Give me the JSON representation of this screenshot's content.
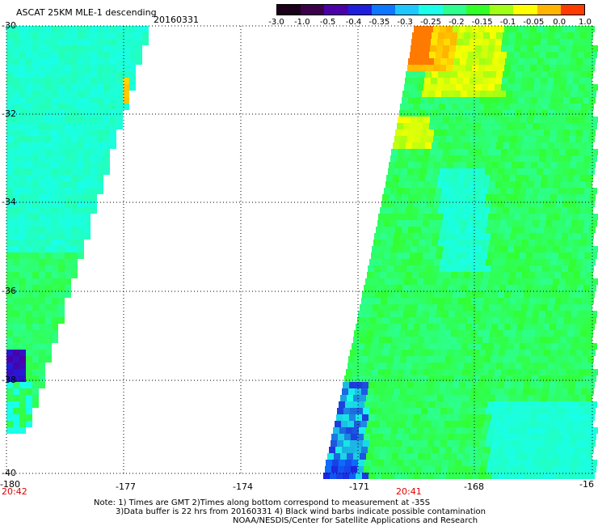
{
  "header": {
    "title": "ASCAT 25KM MLE-1 descending",
    "date": "20160331"
  },
  "colorbar": {
    "labels": [
      "-3.0",
      "-1.0",
      "-0.5",
      "-0.4",
      "-0.35",
      "-0.3",
      "-0.25",
      "-0.2",
      "-0.15",
      "-0.1",
      "-0.05",
      "0.0",
      "1.0"
    ],
    "colors": [
      "#1a0018",
      "#3a004a",
      "#4b00a8",
      "#1e1edc",
      "#0a78ff",
      "#1ec8ff",
      "#19ffe8",
      "#2cff90",
      "#32ff28",
      "#a0ff14",
      "#ffff00",
      "#ffb400",
      "#ff3c00"
    ]
  },
  "axes": {
    "lat_labels": [
      "-30",
      "-32",
      "-34",
      "-36",
      "-38",
      "-40"
    ],
    "lon_labels": [
      "-180",
      "-177",
      "-174",
      "-171",
      "-168",
      "-16"
    ]
  },
  "times": {
    "left": "20:42",
    "right": "20:41"
  },
  "notes": {
    "line1": "Note: 1) Times are GMT 2)Times along bottom correspond to measurement at -35S",
    "line2": "3)Data buffer is 22 hrs from 20160331 4) Black wind barbs indicate possible contamination",
    "line3": "NOAA/NESDIS/Center for Satellite Applications and Research"
  }
}
